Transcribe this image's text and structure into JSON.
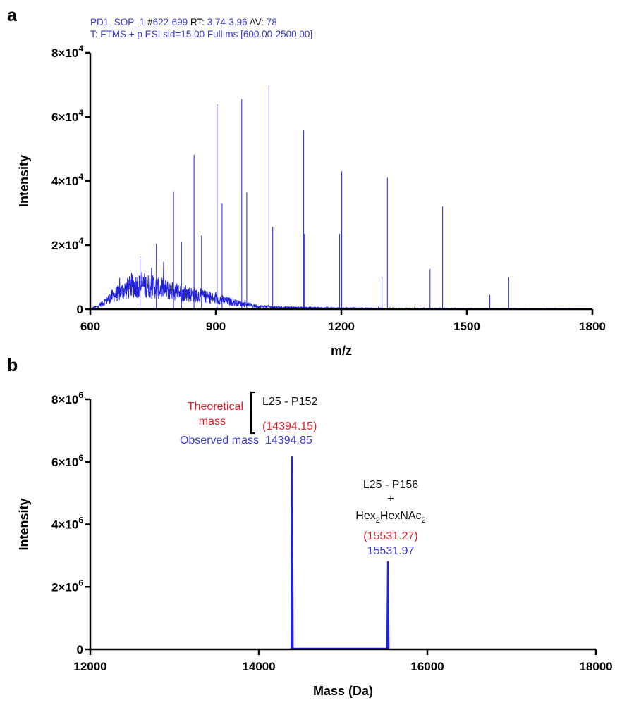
{
  "colors": {
    "trace": "#2222dd",
    "header_blue": "#3b3bd6",
    "theoretical": "#e0202a",
    "axis": "#000000"
  },
  "panel_a": {
    "letter": "a",
    "header": {
      "line1": [
        {
          "text": "PD1_SOP_1",
          "color": "blue"
        },
        {
          "text": " #",
          "color": "black"
        },
        {
          "text": "622-699",
          "color": "blue"
        },
        {
          "text": " RT: ",
          "color": "black"
        },
        {
          "text": "3.74-3.96",
          "color": "blue"
        },
        {
          "text": " AV: ",
          "color": "black"
        },
        {
          "text": "78",
          "color": "blue"
        }
      ],
      "line2": [
        {
          "text": "T: FTMS + p ESI sid=15.00 Full ms [600.00-2500.00]",
          "color": "blue"
        }
      ]
    }
  },
  "panel_b": {
    "letter": "b",
    "annotations": {
      "peak1_label": "L25 - P152",
      "theoretical_label_line1": "Theoretical",
      "theoretical_label_line2": "mass",
      "peak1_theoretical": "(14394.15)",
      "observed_label": "Observed mass",
      "peak1_observed": "14394.85",
      "peak2_label_line1": "L25 - P156",
      "peak2_label_line2": "+",
      "peak2_glycan_hex": "Hex",
      "peak2_glycan_sub1": "2",
      "peak2_glycan_hexnac": "HexNAc",
      "peak2_glycan_sub2": "2",
      "peak2_theoretical": "(15531.27)",
      "peak2_observed": "15531.97"
    }
  },
  "chart_data": [
    {
      "type": "line",
      "title": "",
      "xlabel": "m/z",
      "ylabel": "Intensity",
      "xlim": [
        600,
        1800
      ],
      "ylim": [
        0,
        80000
      ],
      "x_ticks": [
        {
          "value": 600,
          "label": "600"
        },
        {
          "value": 900,
          "label": "900"
        },
        {
          "value": 1200,
          "label": "1200"
        },
        {
          "value": 1500,
          "label": "1500"
        },
        {
          "value": 1800,
          "label": "1800"
        }
      ],
      "y_ticks": [
        {
          "value": 0,
          "base": "0",
          "exp": ""
        },
        {
          "value": 20000,
          "base": "2×10",
          "exp": "4"
        },
        {
          "value": 40000,
          "base": "4×10",
          "exp": "4"
        },
        {
          "value": 60000,
          "base": "6×10",
          "exp": "4"
        },
        {
          "value": 80000,
          "base": "8×10",
          "exp": "4"
        }
      ],
      "series": [
        {
          "peaks": [
            [
              719,
              16500
            ],
            [
              758,
              20500
            ],
            [
              799,
              36800
            ],
            [
              818,
              21000
            ],
            [
              848,
              48200
            ],
            [
              866,
              23000
            ],
            [
              903,
              64000
            ],
            [
              915,
              33000
            ],
            [
              962,
              65500
            ],
            [
              974,
              36500
            ],
            [
              1027,
              70000
            ],
            [
              1036,
              25700
            ],
            [
              1110,
              56000
            ],
            [
              1112,
              23500
            ],
            [
              1196,
              23500
            ],
            [
              1201,
              43000
            ],
            [
              1297,
              10000
            ],
            [
              1310,
              41000
            ],
            [
              1412,
              12500
            ],
            [
              1442,
              32000
            ],
            [
              1555,
              4500
            ],
            [
              1600,
              10000
            ]
          ],
          "envelope": [
            [
              600,
              0
            ],
            [
              620,
              1200
            ],
            [
              650,
              4500
            ],
            [
              700,
              8500
            ],
            [
              730,
              8800
            ],
            [
              770,
              7600
            ],
            [
              810,
              6200
            ],
            [
              860,
              5000
            ],
            [
              910,
              3500
            ],
            [
              960,
              2000
            ],
            [
              1000,
              1100
            ],
            [
              1060,
              600
            ],
            [
              1200,
              350
            ],
            [
              1500,
              200
            ],
            [
              1800,
              150
            ]
          ]
        }
      ]
    },
    {
      "type": "line",
      "title": "",
      "xlabel": "Mass (Da)",
      "ylabel": "Intensity",
      "xlim": [
        12000,
        18000
      ],
      "ylim": [
        0,
        8000000
      ],
      "x_ticks": [
        {
          "value": 12000,
          "label": "12000"
        },
        {
          "value": 14000,
          "label": "14000"
        },
        {
          "value": 16000,
          "label": "16000"
        },
        {
          "value": 18000,
          "label": "18000"
        }
      ],
      "y_ticks": [
        {
          "value": 0,
          "base": "0",
          "exp": ""
        },
        {
          "value": 2000000,
          "base": "2×10",
          "exp": "6"
        },
        {
          "value": 4000000,
          "base": "4×10",
          "exp": "6"
        },
        {
          "value": 6000000,
          "base": "6×10",
          "exp": "6"
        },
        {
          "value": 8000000,
          "base": "8×10",
          "exp": "6"
        }
      ],
      "series": [
        {
          "peaks": [
            [
              14394.85,
              6150000
            ],
            [
              15531.97,
              2800000
            ]
          ],
          "baseline_range": [
            14394.85,
            15531.97
          ]
        }
      ]
    }
  ]
}
